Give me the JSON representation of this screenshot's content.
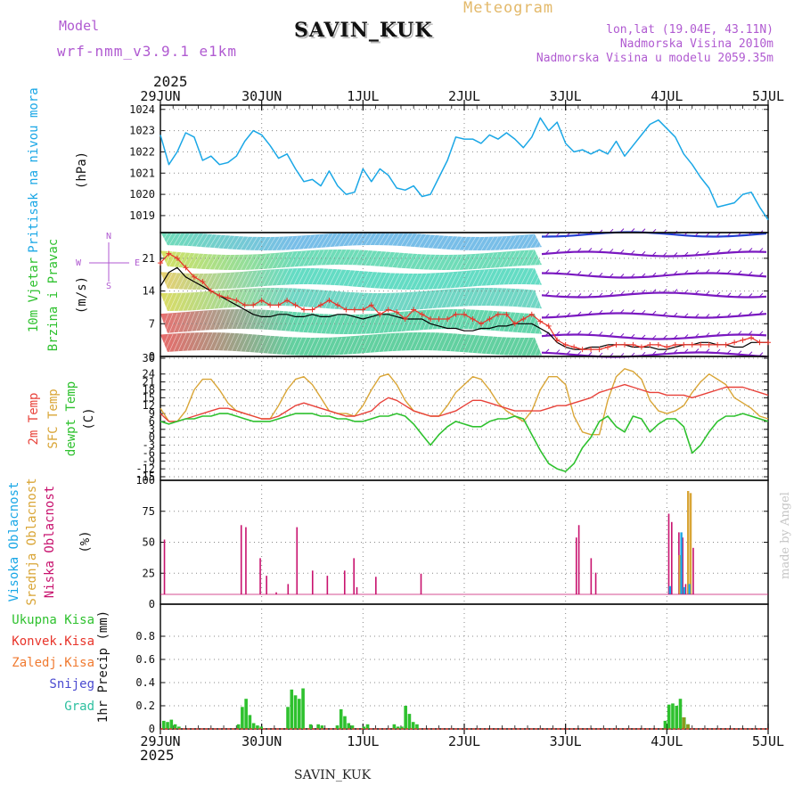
{
  "header": {
    "model_label": "Model",
    "model_value": "wrf-nmm_v3.9.1 e1km",
    "station": "SAVIN_KUK",
    "product": "Meteogram",
    "lonlat": "lon,lat (19.04E, 43.11N)",
    "elevation": "Nadmorska Visina 2010m",
    "model_elevation": "Nadmorska Visina u modelu 2059.35m",
    "year": "2025"
  },
  "footer": {
    "station": "SAVIN_KUK",
    "year": "2025",
    "credit": "made by Angel"
  },
  "colors": {
    "pressure": "#1aa7e6",
    "wind_black": "#000000",
    "gust": "#e8342a",
    "temp2m": "#e8423a",
    "sfc": "#d9a536",
    "dewpt": "#2ec12e",
    "cloud_high": "#1aa7e6",
    "cloud_mid": "#d9a536",
    "cloud_low": "#c8126e",
    "precip_total": "#2ec12e",
    "header_purple": "#b05ad1",
    "header_gold": "#e3b96a"
  },
  "chart_data": [
    {
      "type": "line",
      "panel": "pressure",
      "ylabel": [
        "Pritisak na nivou mora",
        "(hPa)"
      ],
      "xticks": [
        "29JUN",
        "30JUN",
        "1JUL",
        "2JUL",
        "3JUL",
        "4JUL",
        "5JUL"
      ],
      "ylim": [
        1018.2,
        1024.2
      ],
      "yticks": [
        1019,
        1020,
        1021,
        1022,
        1023,
        1024
      ],
      "grid": true,
      "x_hours": [
        0,
        2,
        4,
        6,
        8,
        10,
        12,
        14,
        16,
        18,
        20,
        22,
        24,
        26,
        28,
        30,
        32,
        34,
        36,
        38,
        40,
        42,
        44,
        46,
        48,
        50,
        52,
        54,
        56,
        58,
        60,
        62,
        64,
        66,
        68,
        70,
        72,
        74,
        76,
        78,
        80,
        82,
        84,
        86,
        88,
        90,
        92,
        94,
        96,
        98,
        100,
        102,
        104,
        106,
        108,
        110,
        112,
        114,
        116,
        118,
        120,
        122,
        124,
        126,
        128,
        130,
        132,
        134,
        136,
        138,
        140,
        142,
        144
      ],
      "series": [
        {
          "values": [
            1022.8,
            1021.4,
            1022.0,
            1022.9,
            1022.7,
            1021.6,
            1021.8,
            1021.4,
            1021.5,
            1021.8,
            1022.5,
            1023.0,
            1022.8,
            1022.3,
            1021.7,
            1021.9,
            1021.2,
            1020.6,
            1020.7,
            1020.4,
            1021.1,
            1020.4,
            1020.0,
            1020.1,
            1021.2,
            1020.6,
            1021.2,
            1020.9,
            1020.3,
            1020.2,
            1020.4,
            1019.9,
            1020.0,
            1020.8,
            1021.6,
            1022.7,
            1022.6,
            1022.6,
            1022.4,
            1022.8,
            1022.6,
            1022.9,
            1022.6,
            1022.2,
            1022.7,
            1023.6,
            1023.0,
            1023.4,
            1022.4,
            1022.0,
            1022.1,
            1021.9,
            1022.1,
            1021.9,
            1022.5,
            1021.8,
            1022.3,
            1022.8,
            1023.3,
            1023.5,
            1023.1,
            1022.7,
            1021.9,
            1021.4,
            1020.8,
            1020.3,
            1019.4,
            1019.5,
            1019.6,
            1020.0,
            1020.1,
            1019.4,
            1018.8
          ]
        }
      ]
    },
    {
      "type": "line",
      "panel": "wind",
      "ylabel": [
        "10m Vjetar",
        "Brzina i Pravac",
        "(m/s)"
      ],
      "compass": [
        "N",
        "E",
        "S",
        "W"
      ],
      "ylim": [
        0,
        26.5
      ],
      "yticks": [
        0,
        7,
        14,
        21
      ],
      "grid": true,
      "x_hours": [
        0,
        2,
        4,
        6,
        8,
        10,
        12,
        14,
        16,
        18,
        20,
        22,
        24,
        26,
        28,
        30,
        32,
        34,
        36,
        38,
        40,
        42,
        44,
        46,
        48,
        50,
        52,
        54,
        56,
        58,
        60,
        62,
        64,
        66,
        68,
        70,
        72,
        74,
        76,
        78,
        80,
        82,
        84,
        86,
        88,
        90,
        92,
        94,
        96,
        98,
        100,
        102,
        104,
        106,
        108,
        110,
        112,
        114,
        116,
        118,
        120,
        122,
        124,
        126,
        128,
        130,
        132,
        134,
        136,
        138,
        140,
        142,
        144
      ],
      "series": [
        {
          "values": [
            15,
            18,
            19,
            17,
            16,
            15,
            14,
            13,
            12,
            11,
            10,
            9,
            8.5,
            8.5,
            9,
            9,
            8.5,
            8.5,
            9,
            8.5,
            8.5,
            9,
            9,
            8.5,
            8,
            8.5,
            9,
            9,
            8.5,
            8,
            8,
            8,
            7,
            6.5,
            6,
            6,
            5.5,
            5.5,
            6,
            6,
            6.5,
            6.5,
            7,
            7,
            7,
            6,
            5,
            3,
            2,
            1.5,
            1.5,
            2,
            2,
            2.5,
            2.5,
            2.5,
            2,
            2,
            2,
            1.5,
            1.5,
            2,
            2.5,
            2.5,
            3,
            3,
            2.5,
            2.5,
            2,
            2,
            3,
            3,
            3
          ]
        },
        {
          "values": [
            20,
            22,
            21,
            19,
            17,
            16,
            14,
            13,
            12.5,
            12,
            11,
            11,
            12,
            11,
            11,
            12,
            11,
            10,
            10,
            11,
            12,
            11,
            10,
            10,
            10,
            11,
            9,
            10,
            9.5,
            8,
            10,
            9,
            8,
            8,
            8,
            9,
            9,
            8,
            7,
            8,
            9,
            9,
            7,
            8,
            9,
            7.5,
            6.5,
            3.5,
            2.5,
            2,
            1.5,
            1.5,
            1.5,
            2,
            2.5,
            2.5,
            2.5,
            2,
            2.5,
            2.5,
            2,
            2.5,
            2.5,
            2.5,
            2.5,
            2.5,
            2.5,
            2.5,
            3,
            3.5,
            4,
            3,
            3
          ]
        }
      ]
    },
    {
      "type": "line",
      "panel": "temperature",
      "ylabel": [
        "2m Temp",
        "SFC Temp",
        "dewpt Temp",
        "(C)"
      ],
      "ylim": [
        -15,
        30
      ],
      "yticks": [
        -15,
        -12,
        -9,
        -6,
        -3,
        0,
        3,
        6,
        9,
        12,
        15,
        18,
        21,
        24,
        30
      ],
      "grid": true,
      "x_hours": [
        0,
        2,
        4,
        6,
        8,
        10,
        12,
        14,
        16,
        18,
        20,
        22,
        24,
        26,
        28,
        30,
        32,
        34,
        36,
        38,
        40,
        42,
        44,
        46,
        48,
        50,
        52,
        54,
        56,
        58,
        60,
        62,
        64,
        66,
        68,
        70,
        72,
        74,
        76,
        78,
        80,
        82,
        84,
        86,
        88,
        90,
        92,
        94,
        96,
        98,
        100,
        102,
        104,
        106,
        108,
        110,
        112,
        114,
        116,
        118,
        120,
        122,
        124,
        126,
        128,
        130,
        132,
        134,
        136,
        138,
        140,
        142,
        144
      ],
      "series": [
        {
          "values": [
            9,
            6,
            6,
            7,
            8,
            9,
            10,
            11,
            11,
            10,
            9,
            8,
            7,
            7,
            8,
            10,
            12,
            13,
            12,
            11,
            10,
            9,
            8,
            8,
            9,
            10,
            13,
            15,
            14,
            12,
            10,
            9,
            8,
            8,
            9,
            10,
            12,
            14,
            14,
            13,
            12,
            11,
            10,
            10,
            10,
            10,
            11,
            12,
            12,
            13,
            14,
            15,
            17,
            18,
            19,
            20,
            19,
            18,
            17,
            17,
            16,
            16,
            16,
            15,
            16,
            17,
            18,
            19,
            19,
            19,
            18,
            17,
            16
          ]
        },
        {
          "values": [
            11,
            6,
            6,
            10,
            18,
            22,
            22,
            18,
            13,
            10,
            9,
            8,
            7,
            7,
            12,
            18,
            22,
            23,
            20,
            15,
            10,
            9,
            9,
            8,
            12,
            18,
            23,
            24,
            20,
            14,
            10,
            9,
            8,
            8,
            12,
            17,
            20,
            23,
            22,
            18,
            13,
            10,
            8,
            6,
            10,
            18,
            23,
            23,
            20,
            8,
            2,
            1,
            1,
            14,
            23,
            26,
            25,
            22,
            14,
            10,
            9,
            10,
            12,
            17,
            21,
            24,
            22,
            20,
            15,
            13,
            11,
            8,
            7
          ]
        },
        {
          "values": [
            6,
            5,
            6,
            7,
            7,
            8,
            8,
            9,
            9,
            8,
            7,
            6,
            6,
            6,
            7,
            8,
            9,
            9,
            9,
            8,
            8,
            7,
            7,
            6,
            6,
            7,
            8,
            8,
            9,
            8,
            5,
            1,
            -3,
            1,
            4,
            6,
            5,
            4,
            4,
            6,
            7,
            7,
            8,
            7,
            1,
            -5,
            -10,
            -12,
            -13,
            -10,
            -4,
            0,
            6,
            8,
            4,
            2,
            8,
            7,
            2,
            5,
            7,
            7,
            4,
            -6,
            -3,
            2,
            6,
            8,
            8,
            9,
            8,
            7,
            6
          ]
        }
      ]
    },
    {
      "type": "bar",
      "panel": "clouds",
      "ylabel": [
        "Visoka Oblacnost",
        "Srednja Oblacnost",
        "Niska Oblacnost",
        "(%)"
      ],
      "ylim": [
        0,
        100
      ],
      "yticks": [
        0,
        25,
        50,
        75,
        100
      ],
      "grid": true,
      "series": [
        {
          "values": [
            [
              1,
              53
            ],
            [
              19.2,
              67
            ],
            [
              20.3,
              65
            ],
            [
              23.7,
              35
            ],
            [
              25.2,
              18
            ],
            [
              27.5,
              2
            ],
            [
              30.3,
              10
            ],
            [
              32.4,
              65
            ],
            [
              36.1,
              23
            ],
            [
              39.6,
              18
            ],
            [
              43.7,
              23
            ],
            [
              45.9,
              35
            ],
            [
              46.6,
              7
            ],
            [
              51.1,
              17
            ],
            [
              61.8,
              20
            ],
            [
              98.6,
              55
            ],
            [
              99.2,
              67
            ],
            [
              102.1,
              35
            ],
            [
              103.2,
              21
            ],
            [
              120.5,
              78
            ],
            [
              121.2,
              70
            ],
            [
              122.9,
              60
            ],
            [
              123.8,
              55
            ],
            [
              124.5,
              10
            ],
            [
              126.3,
              45
            ]
          ]
        },
        {
          "values": [
            [
              123.0,
              38
            ],
            [
              125.0,
              100
            ],
            [
              125.6,
              98
            ]
          ]
        },
        {
          "values": [
            [
              120.7,
              8
            ],
            [
              123.4,
              60
            ],
            [
              124.1,
              7
            ],
            [
              125.3,
              10
            ]
          ]
        }
      ]
    },
    {
      "type": "bar",
      "panel": "precipitation",
      "ylabel": [
        "1hr Precip (mm)"
      ],
      "legend": [
        "Ukupna Kisa",
        "Konvek.Kisa",
        "Zaledj.Kisa",
        "Snijeg",
        "Grad"
      ],
      "ylim": [
        0,
        1
      ],
      "yticks": [
        0,
        0.2,
        0.4,
        0.6,
        0.8
      ],
      "grid": true,
      "series": [
        {
          "values": [
            [
              0.8,
              0.07
            ],
            [
              1.7,
              0.06
            ],
            [
              2.6,
              0.08
            ],
            [
              3.5,
              0.04
            ],
            [
              4.4,
              0.02
            ],
            [
              18.5,
              0.04
            ],
            [
              19.4,
              0.19
            ],
            [
              20.3,
              0.26
            ],
            [
              21.2,
              0.12
            ],
            [
              22.1,
              0.05
            ],
            [
              23,
              0.03
            ],
            [
              23.9,
              0.02
            ],
            [
              30.2,
              0.19
            ],
            [
              31.1,
              0.34
            ],
            [
              32,
              0.29
            ],
            [
              32.9,
              0.26
            ],
            [
              33.8,
              0.35
            ],
            [
              35.6,
              0.04
            ],
            [
              37.4,
              0.04
            ],
            [
              38.3,
              0.03
            ],
            [
              41.9,
              0.03
            ],
            [
              42.8,
              0.17
            ],
            [
              43.7,
              0.11
            ],
            [
              44.6,
              0.05
            ],
            [
              45.5,
              0.03
            ],
            [
              48.2,
              0.02
            ],
            [
              49.1,
              0.04
            ],
            [
              55.4,
              0.04
            ],
            [
              56.3,
              0.02
            ],
            [
              57.2,
              0.02
            ],
            [
              58.1,
              0.2
            ],
            [
              59,
              0.13
            ],
            [
              59.9,
              0.06
            ],
            [
              60.8,
              0.04
            ],
            [
              119.6,
              0.07
            ],
            [
              120.5,
              0.21
            ],
            [
              121.4,
              0.22
            ],
            [
              122.3,
              0.2
            ],
            [
              123.2,
              0.26
            ],
            [
              124.1,
              0.1
            ],
            [
              125,
              0.04
            ]
          ]
        },
        {
          "values": [
            [
              124.0,
              0.1
            ],
            [
              125.0,
              0.04
            ]
          ]
        }
      ]
    }
  ]
}
